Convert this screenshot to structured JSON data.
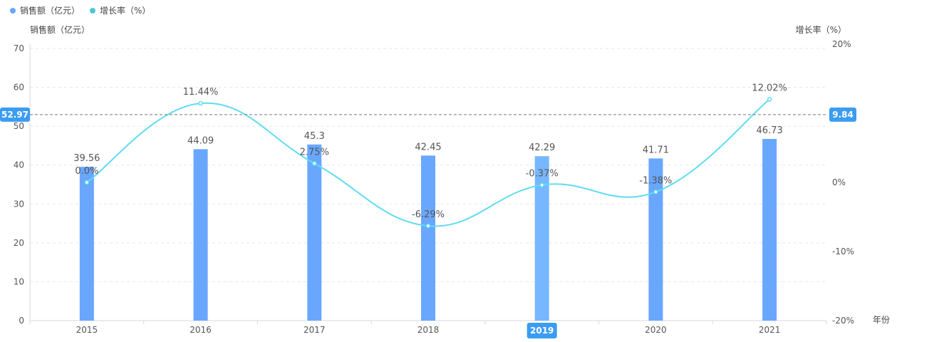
{
  "chart_data": {
    "type": "bar",
    "categories": [
      "2015",
      "2016",
      "2017",
      "2018",
      "2019",
      "2020",
      "2021"
    ],
    "series": [
      {
        "name": "销售额（亿元）",
        "type": "bar",
        "axis": "left",
        "values": [
          39.56,
          44.09,
          45.3,
          42.45,
          42.29,
          41.71,
          46.73
        ],
        "labels": [
          "39.56",
          "44.09",
          "45.3",
          "42.45",
          "42.29",
          "41.71",
          "46.73"
        ],
        "color": "#69a7ff",
        "highlight_color": "#76b7ff"
      },
      {
        "name": "增长率（%）",
        "type": "line",
        "axis": "right",
        "values": [
          0.0,
          11.44,
          2.75,
          -6.29,
          -0.37,
          -1.38,
          12.02
        ],
        "labels": [
          "0.0%",
          "11.44%",
          "2.75%",
          "-6.29%",
          "-0.37%",
          "-1.38%",
          "12.02%"
        ],
        "color": "#5fdcf0"
      }
    ],
    "left_axis": {
      "label": "销售额（亿元）",
      "min": 0,
      "max": 70,
      "ticks": [
        "0",
        "10",
        "20",
        "30",
        "40",
        "50",
        "60",
        "70"
      ]
    },
    "right_axis": {
      "label": "增长率（%）",
      "min": -20,
      "max": 20,
      "ticks": [
        "-20%",
        "-10%",
        "0%",
        "20%"
      ]
    },
    "x_axis": {
      "label": "年份"
    },
    "pointer": {
      "category": "2019",
      "left_value": 52.97,
      "left_label": "52.97",
      "right_label": "9.84",
      "badge_color": "#3b9cf3"
    },
    "legend": {
      "position": "top-left"
    },
    "grid": true
  }
}
